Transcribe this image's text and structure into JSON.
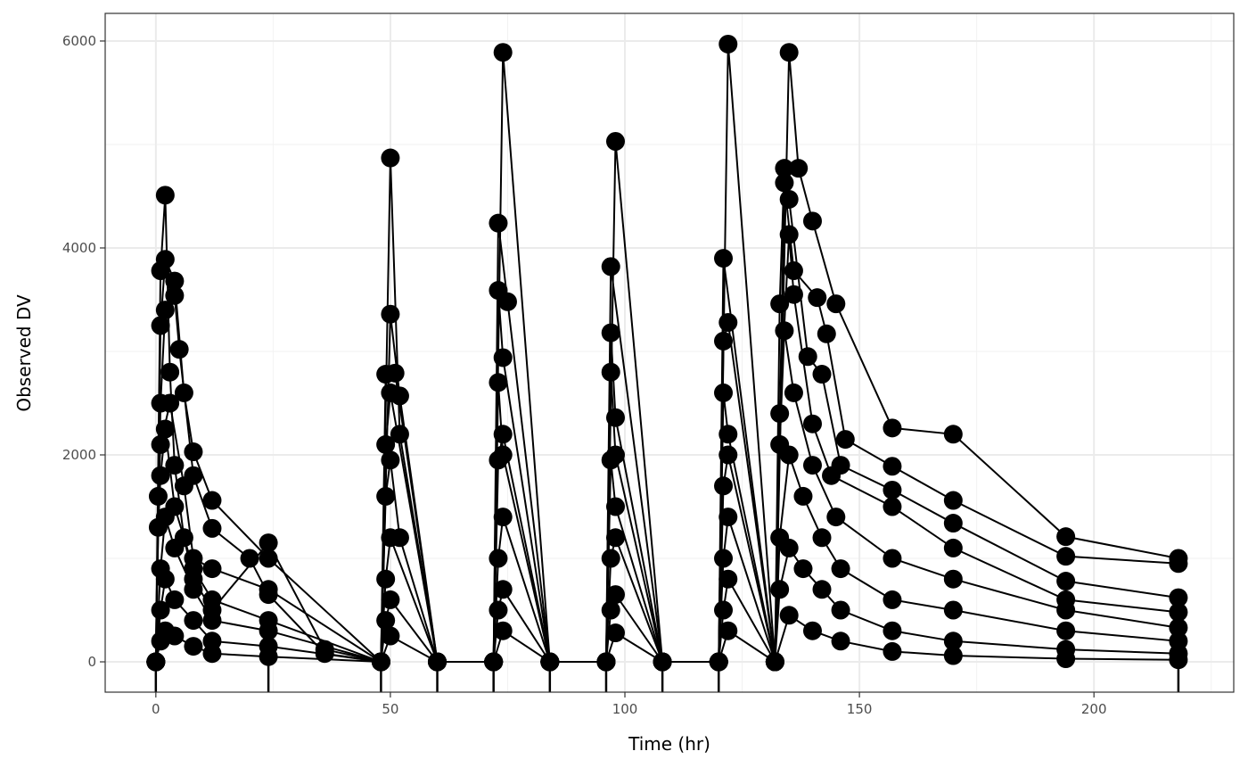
{
  "chart_data": {
    "type": "line",
    "title": "",
    "xlabel": "Time (hr)",
    "ylabel": "Observed DV",
    "xlim": [
      -10.8,
      229.8
    ],
    "ylim": [
      -293,
      6267
    ],
    "xticks": [
      0,
      50,
      100,
      150,
      200
    ],
    "yticks": [
      0,
      2000,
      4000,
      6000
    ],
    "xtick_labels": [
      "0",
      "50",
      "100",
      "150",
      "200"
    ],
    "ytick_labels": [
      "0",
      "2000",
      "4000",
      "6000"
    ],
    "grid": true,
    "theme": "black-and-white",
    "markers": "filled-circle",
    "line_color": "#000000",
    "point_color": "#000000",
    "offscale_low_times": [
      0,
      24,
      48,
      60,
      72,
      84,
      96,
      108,
      120,
      218
    ],
    "series": [
      {
        "points": [
          [
            0,
            0
          ],
          [
            1,
            3780
          ],
          [
            2,
            4510
          ],
          [
            3,
            2800
          ],
          [
            4,
            1900
          ],
          [
            6,
            1200
          ],
          [
            8,
            800
          ],
          [
            12,
            500
          ],
          [
            24,
            1150
          ],
          [
            36,
            120
          ],
          [
            48,
            0
          ],
          [
            50,
            4870
          ],
          [
            52,
            2200
          ],
          [
            60,
            0
          ],
          [
            72,
            0
          ],
          [
            74,
            5890
          ],
          [
            84,
            0
          ],
          [
            96,
            0
          ],
          [
            98,
            5030
          ],
          [
            108,
            0
          ],
          [
            120,
            0
          ],
          [
            122,
            5970
          ],
          [
            132,
            0
          ],
          [
            135,
            5890
          ],
          [
            137,
            4770
          ],
          [
            140,
            4260
          ],
          [
            145,
            3460
          ],
          [
            157,
            2260
          ],
          [
            170,
            2200
          ],
          [
            194,
            1210
          ],
          [
            218,
            1000
          ]
        ]
      },
      {
        "points": [
          [
            0,
            0
          ],
          [
            1,
            3250
          ],
          [
            2,
            3890
          ],
          [
            4,
            3680
          ],
          [
            6,
            2600
          ],
          [
            8,
            2030
          ],
          [
            12,
            1560
          ],
          [
            24,
            1000
          ],
          [
            48,
            0
          ],
          [
            50,
            3360
          ],
          [
            52,
            2570
          ],
          [
            60,
            0
          ],
          [
            72,
            0
          ],
          [
            73,
            4240
          ],
          [
            75,
            3480
          ],
          [
            84,
            0
          ],
          [
            96,
            0
          ],
          [
            97,
            3820
          ],
          [
            108,
            0
          ],
          [
            120,
            0
          ],
          [
            121,
            3900
          ],
          [
            132,
            0
          ],
          [
            134,
            4630
          ],
          [
            136,
            3780
          ],
          [
            141,
            3520
          ],
          [
            143,
            3170
          ],
          [
            147,
            2150
          ],
          [
            157,
            1890
          ],
          [
            170,
            1560
          ],
          [
            194,
            1020
          ],
          [
            218,
            950
          ]
        ]
      },
      {
        "points": [
          [
            0,
            0
          ],
          [
            1,
            2500
          ],
          [
            2,
            3400
          ],
          [
            4,
            3540
          ],
          [
            5,
            3020
          ],
          [
            8,
            1800
          ],
          [
            12,
            1290
          ],
          [
            20,
            1000
          ],
          [
            24,
            650
          ],
          [
            36,
            80
          ],
          [
            48,
            0
          ],
          [
            49,
            2780
          ],
          [
            51,
            2790
          ],
          [
            60,
            0
          ],
          [
            72,
            0
          ],
          [
            73,
            3590
          ],
          [
            74,
            2940
          ],
          [
            84,
            0
          ],
          [
            96,
            0
          ],
          [
            97,
            3180
          ],
          [
            98,
            2360
          ],
          [
            108,
            0
          ],
          [
            120,
            0
          ],
          [
            121,
            3100
          ],
          [
            122,
            3280
          ],
          [
            132,
            0
          ],
          [
            133,
            3460
          ],
          [
            134,
            4770
          ],
          [
            135,
            4470
          ],
          [
            139,
            2950
          ],
          [
            142,
            2780
          ],
          [
            146,
            1900
          ],
          [
            157,
            1660
          ],
          [
            170,
            1340
          ],
          [
            194,
            780
          ],
          [
            218,
            620
          ]
        ]
      },
      {
        "points": [
          [
            0,
            0
          ],
          [
            0.5,
            1600
          ],
          [
            1,
            2100
          ],
          [
            3,
            2500
          ],
          [
            6,
            1700
          ],
          [
            8,
            1000
          ],
          [
            12,
            900
          ],
          [
            24,
            700
          ],
          [
            48,
            0
          ],
          [
            49,
            2100
          ],
          [
            50,
            2600
          ],
          [
            60,
            0
          ],
          [
            72,
            0
          ],
          [
            73,
            2700
          ],
          [
            74,
            2000
          ],
          [
            84,
            0
          ],
          [
            96,
            0
          ],
          [
            97,
            2800
          ],
          [
            98,
            2000
          ],
          [
            108,
            0
          ],
          [
            120,
            0
          ],
          [
            121,
            2600
          ],
          [
            122,
            2200
          ],
          [
            132,
            0
          ],
          [
            133,
            2400
          ],
          [
            135,
            4130
          ],
          [
            136,
            3550
          ],
          [
            140,
            2300
          ],
          [
            144,
            1800
          ],
          [
            157,
            1500
          ],
          [
            170,
            1100
          ],
          [
            194,
            600
          ],
          [
            218,
            480
          ]
        ]
      },
      {
        "points": [
          [
            0,
            0
          ],
          [
            0.5,
            1300
          ],
          [
            1,
            1800
          ],
          [
            2,
            2250
          ],
          [
            4,
            1500
          ],
          [
            8,
            900
          ],
          [
            12,
            600
          ],
          [
            24,
            400
          ],
          [
            48,
            0
          ],
          [
            49,
            1600
          ],
          [
            50,
            1950
          ],
          [
            52,
            1200
          ],
          [
            60,
            0
          ],
          [
            72,
            0
          ],
          [
            73,
            1950
          ],
          [
            74,
            2200
          ],
          [
            84,
            0
          ],
          [
            96,
            0
          ],
          [
            97,
            1950
          ],
          [
            98,
            1500
          ],
          [
            108,
            0
          ],
          [
            120,
            0
          ],
          [
            121,
            1700
          ],
          [
            122,
            2000
          ],
          [
            132,
            0
          ],
          [
            133,
            2100
          ],
          [
            134,
            3200
          ],
          [
            136,
            2600
          ],
          [
            140,
            1900
          ],
          [
            145,
            1400
          ],
          [
            157,
            1000
          ],
          [
            170,
            800
          ],
          [
            194,
            500
          ],
          [
            218,
            330
          ]
        ]
      },
      {
        "points": [
          [
            0,
            0
          ],
          [
            1,
            900
          ],
          [
            2,
            1400
          ],
          [
            4,
            1100
          ],
          [
            8,
            700
          ],
          [
            12,
            400
          ],
          [
            24,
            300
          ],
          [
            48,
            0
          ],
          [
            49,
            800
          ],
          [
            50,
            1200
          ],
          [
            60,
            0
          ],
          [
            72,
            0
          ],
          [
            73,
            1000
          ],
          [
            74,
            1400
          ],
          [
            84,
            0
          ],
          [
            96,
            0
          ],
          [
            97,
            1000
          ],
          [
            98,
            1200
          ],
          [
            108,
            0
          ],
          [
            120,
            0
          ],
          [
            121,
            1000
          ],
          [
            122,
            1400
          ],
          [
            132,
            0
          ],
          [
            133,
            1200
          ],
          [
            135,
            2000
          ],
          [
            138,
            1600
          ],
          [
            142,
            1200
          ],
          [
            146,
            900
          ],
          [
            157,
            600
          ],
          [
            170,
            500
          ],
          [
            194,
            300
          ],
          [
            218,
            200
          ]
        ]
      },
      {
        "points": [
          [
            0,
            0
          ],
          [
            1,
            500
          ],
          [
            2,
            800
          ],
          [
            4,
            600
          ],
          [
            8,
            400
          ],
          [
            12,
            200
          ],
          [
            24,
            150
          ],
          [
            48,
            0
          ],
          [
            49,
            400
          ],
          [
            50,
            600
          ],
          [
            60,
            0
          ],
          [
            72,
            0
          ],
          [
            73,
            500
          ],
          [
            74,
            700
          ],
          [
            84,
            0
          ],
          [
            96,
            0
          ],
          [
            97,
            500
          ],
          [
            98,
            650
          ],
          [
            108,
            0
          ],
          [
            120,
            0
          ],
          [
            121,
            500
          ],
          [
            122,
            800
          ],
          [
            132,
            0
          ],
          [
            133,
            700
          ],
          [
            135,
            1100
          ],
          [
            138,
            900
          ],
          [
            142,
            700
          ],
          [
            146,
            500
          ],
          [
            157,
            300
          ],
          [
            170,
            200
          ],
          [
            194,
            120
          ],
          [
            218,
            80
          ]
        ]
      },
      {
        "points": [
          [
            0,
            0
          ],
          [
            1,
            200
          ],
          [
            2,
            300
          ],
          [
            4,
            250
          ],
          [
            8,
            150
          ],
          [
            12,
            80
          ],
          [
            24,
            50
          ],
          [
            48,
            0
          ],
          [
            50,
            250
          ],
          [
            60,
            0
          ],
          [
            72,
            0
          ],
          [
            74,
            300
          ],
          [
            84,
            0
          ],
          [
            96,
            0
          ],
          [
            98,
            280
          ],
          [
            108,
            0
          ],
          [
            120,
            0
          ],
          [
            122,
            300
          ],
          [
            132,
            0
          ],
          [
            135,
            450
          ],
          [
            140,
            300
          ],
          [
            146,
            200
          ],
          [
            157,
            100
          ],
          [
            170,
            60
          ],
          [
            194,
            30
          ],
          [
            218,
            20
          ]
        ]
      }
    ]
  }
}
